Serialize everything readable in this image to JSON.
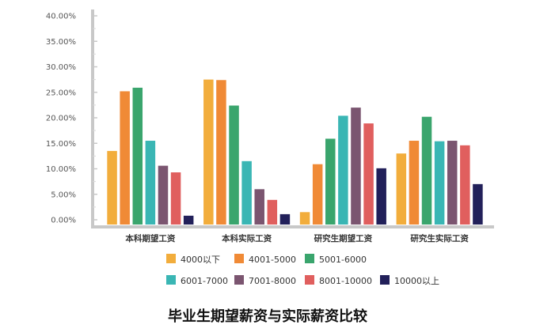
{
  "chart_data": {
    "type": "bar",
    "title": "毕业生期望薪资与实际薪资比较",
    "xlabel": "",
    "ylabel": "",
    "ylim": [
      0,
      40
    ],
    "y_tick_format": "percent_2dp",
    "y_ticks": [
      "0.00%",
      "5.00%",
      "10.00%",
      "15.00%",
      "20.00%",
      "25.00%",
      "30.00%",
      "35.00%",
      "40.00%"
    ],
    "grid": false,
    "legend_position": "bottom",
    "categories": [
      "本科期望工资",
      "本科实际工资",
      "研究生期望工资",
      "研究生实际工资"
    ],
    "series": [
      {
        "name": "4000以下",
        "color": "#f2ad3c",
        "values": [
          13.5,
          27.5,
          1.5,
          13.0
        ]
      },
      {
        "name": "4001-5000",
        "color": "#f08a36",
        "values": [
          25.2,
          27.4,
          10.9,
          15.5
        ]
      },
      {
        "name": "5001-6000",
        "color": "#3aa56d",
        "values": [
          25.9,
          22.4,
          15.9,
          20.2
        ]
      },
      {
        "name": "6001-7000",
        "color": "#3ab6b4",
        "values": [
          15.5,
          11.5,
          20.4,
          15.4
        ]
      },
      {
        "name": "7001-8000",
        "color": "#7b5570",
        "values": [
          10.6,
          6.0,
          22.0,
          15.5
        ]
      },
      {
        "name": "8001-10000",
        "color": "#e05f5e",
        "values": [
          9.3,
          3.9,
          18.9,
          14.6
        ]
      },
      {
        "name": "10000以上",
        "color": "#22205a",
        "values": [
          0.8,
          1.1,
          10.1,
          7.0
        ]
      }
    ]
  }
}
